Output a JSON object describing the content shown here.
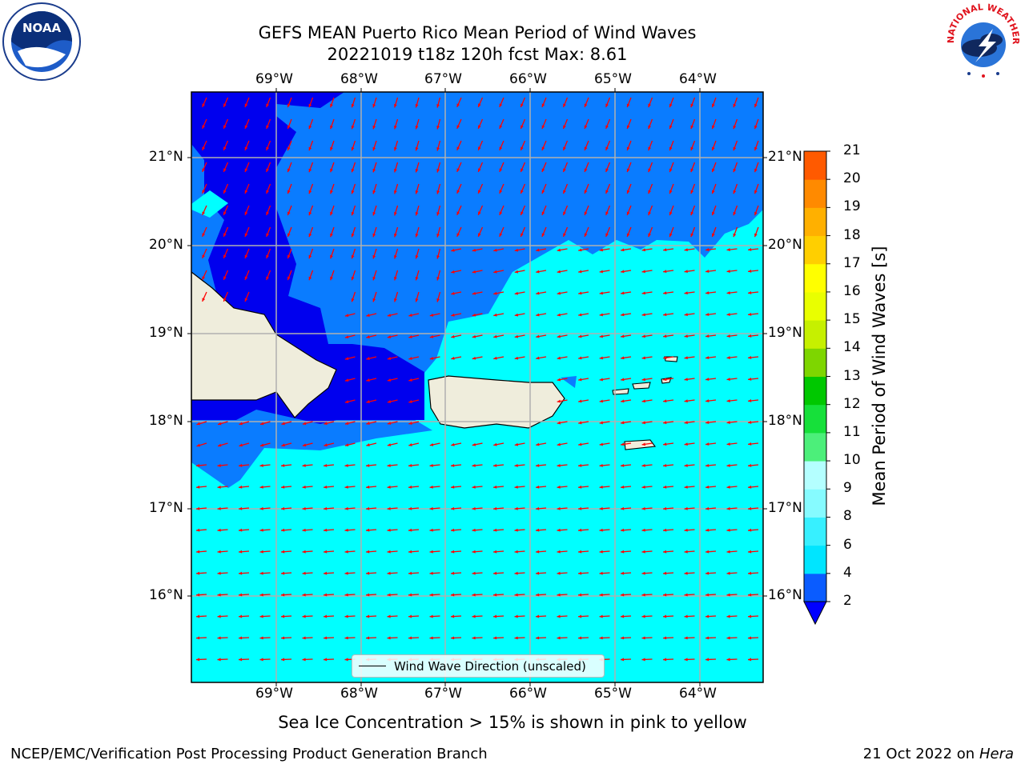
{
  "title_line1": "GEFS MEAN Puerto Rico Mean Period of Wind Waves",
  "title_line2": "20221019 t18z 120h fcst   Max: 8.61",
  "noaa_text": "NOAA",
  "nws_text": "NATIONAL WEATHER SERVICE",
  "lon_labels": [
    "69°W",
    "68°W",
    "67°W",
    "66°W",
    "65°W",
    "64°W"
  ],
  "lat_labels": [
    "21°N",
    "20°N",
    "19°N",
    "18°N",
    "17°N",
    "16°N"
  ],
  "legend_label": "Wind Wave Direction (unscaled)",
  "colorbar": {
    "title": "Mean Period of Wind Waves [s]",
    "ticks": [
      "2",
      "4",
      "6",
      "8",
      "9",
      "10",
      "11",
      "12",
      "13",
      "14",
      "15",
      "16",
      "17",
      "18",
      "19",
      "20",
      "21"
    ],
    "colors": [
      "#0a5cff",
      "#00e5ff",
      "#37f0ff",
      "#86fbff",
      "#b4ffff",
      "#4cef7a",
      "#16e03a",
      "#00c800",
      "#7ed600",
      "#c6f000",
      "#e9ff00",
      "#ffff00",
      "#ffcf00",
      "#ffb000",
      "#ff8a00",
      "#ff5a00",
      "#ff3000",
      "#ff0000"
    ],
    "under_color": "#0000ff"
  },
  "caption": "Sea Ice Concentration > 15% is shown in pink to yellow",
  "footer_left": "NCEP/EMC/Verification Post Processing Product Generation Branch",
  "footer_right_date": "21 Oct 2022 on",
  "footer_right_host": "Hera",
  "map_colors": {
    "ocean_low": "#0000ee",
    "ocean_mid": "#0a7cff",
    "ocean_high": "#00ffff",
    "land": "#efeddc",
    "arrow": "#ff0000",
    "grid": "#b0b0b0"
  }
}
